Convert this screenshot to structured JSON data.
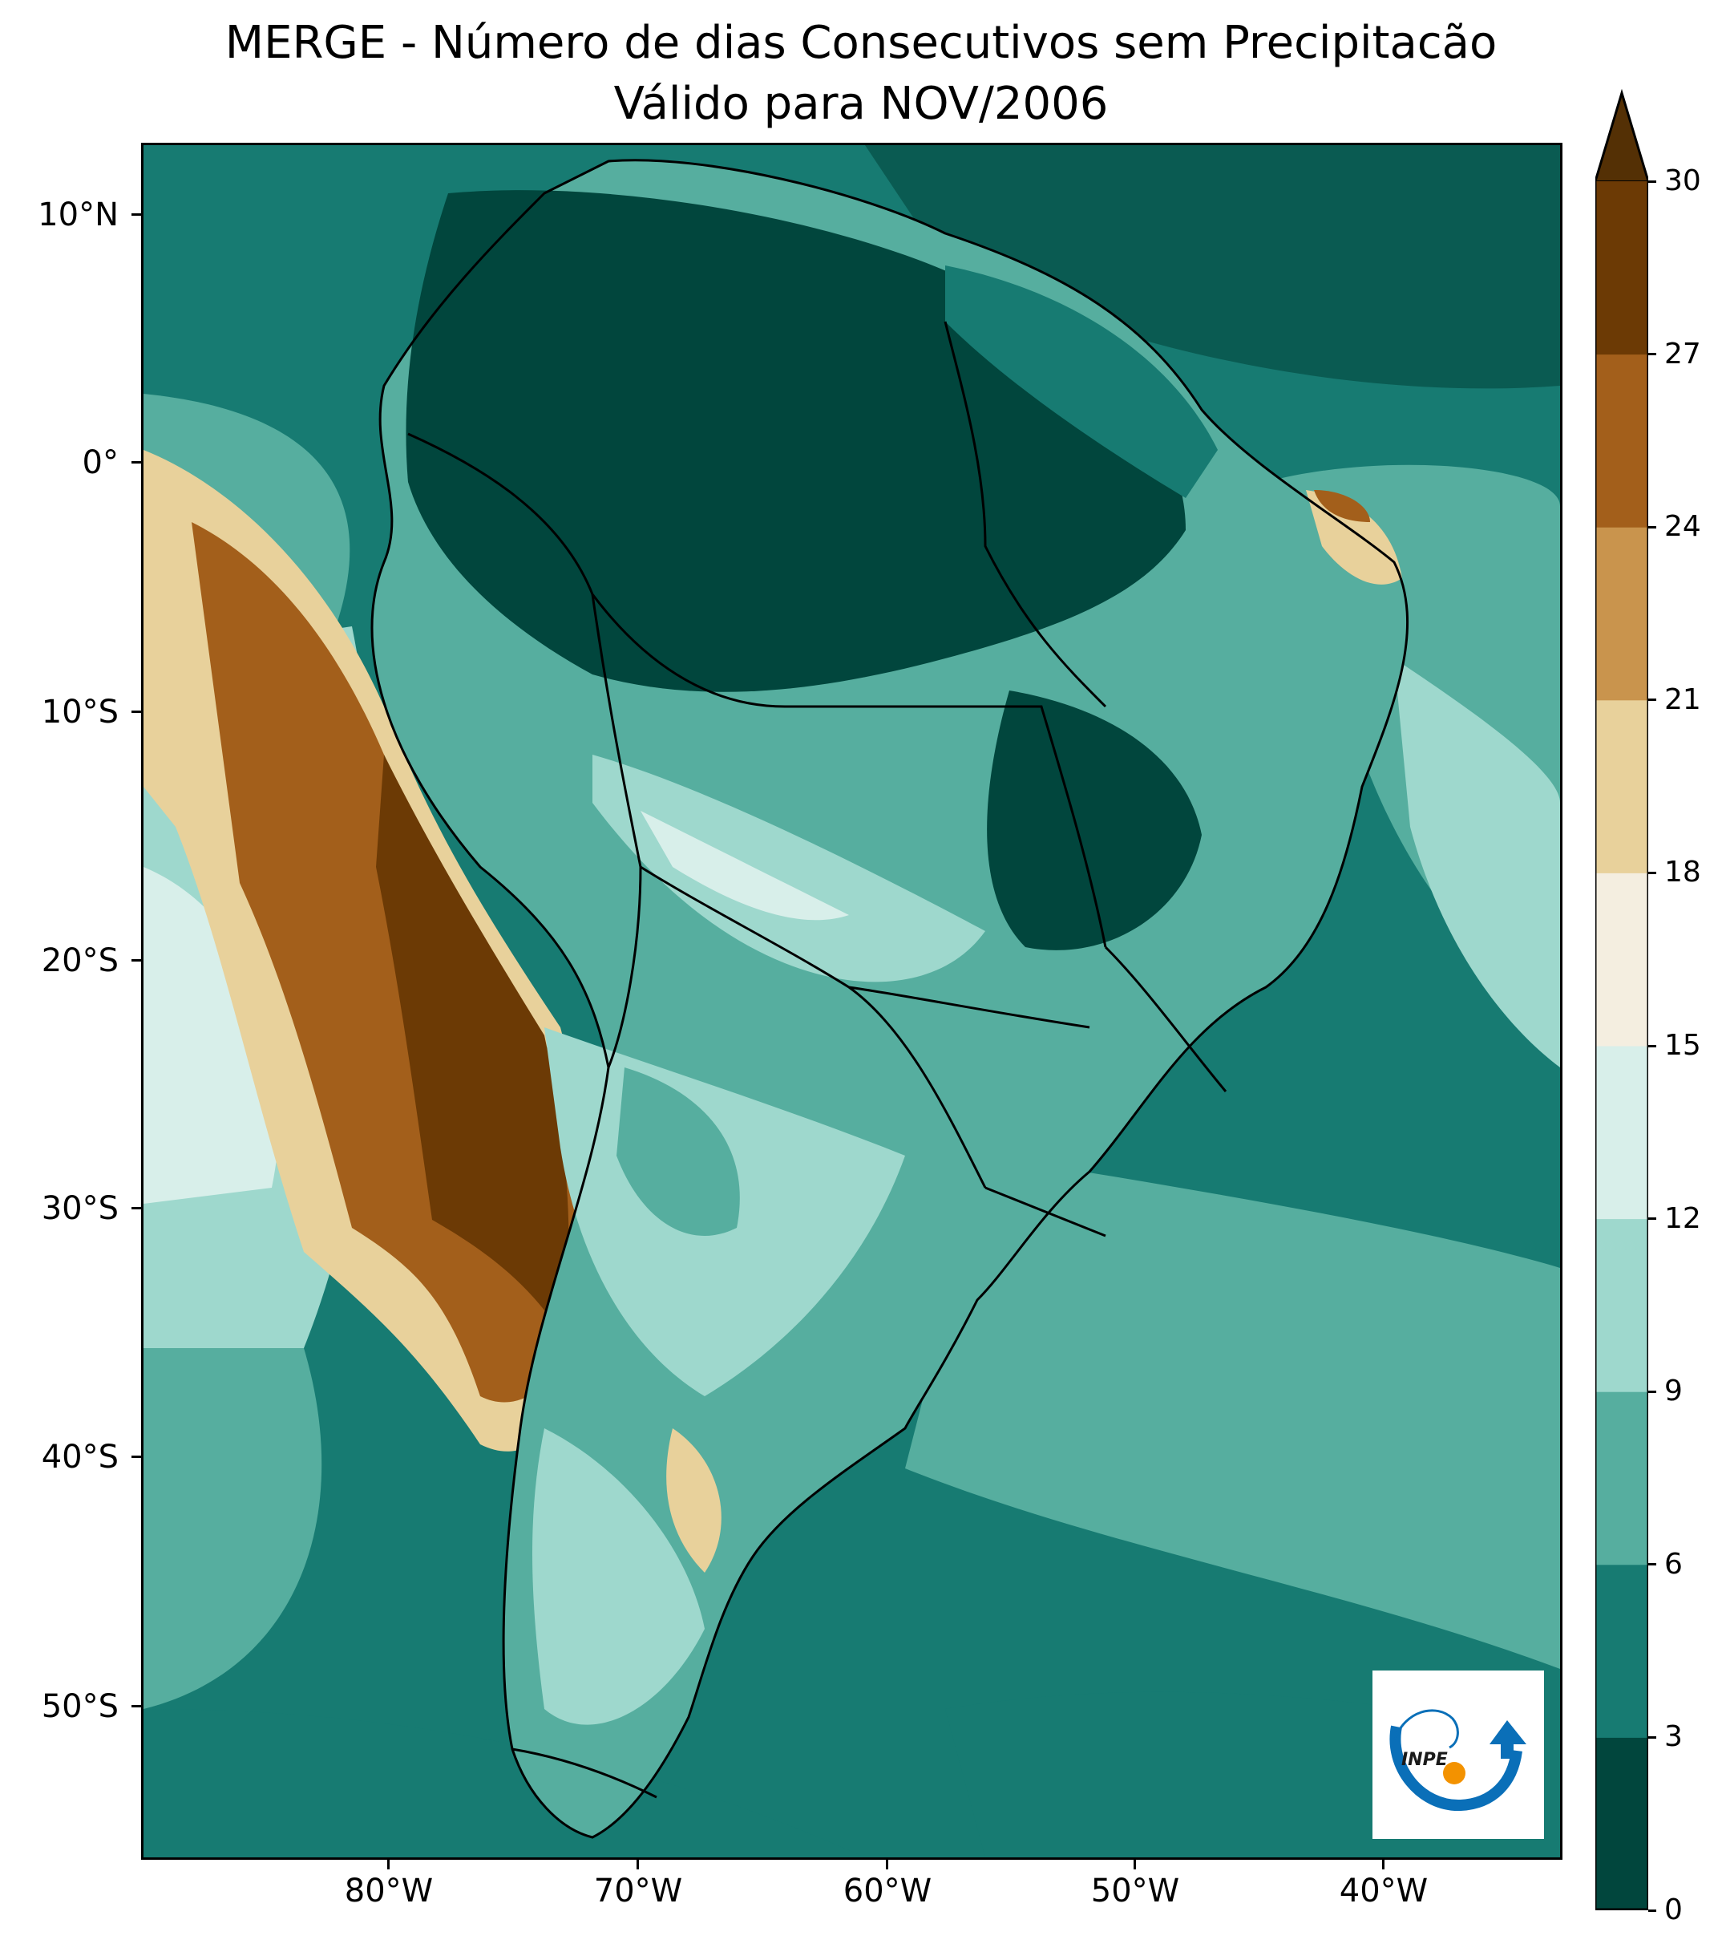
{
  "title": {
    "line1": "MERGE - Número de dias Consecutivos sem Precipitacão",
    "line2": "Válido para NOV/2006"
  },
  "map": {
    "region": "South America",
    "lat_range": [
      -56,
      13
    ],
    "lon_range": [
      -90,
      -33
    ],
    "lat_ticks": [
      "10°N",
      "0°",
      "10°S",
      "20°S",
      "30°S",
      "40°S",
      "50°S"
    ],
    "lon_ticks": [
      "80°W",
      "70°W",
      "60°W",
      "50°W",
      "40°W"
    ]
  },
  "colorbar": {
    "ticks": [
      "0",
      "3",
      "6",
      "9",
      "12",
      "15",
      "18",
      "21",
      "24",
      "27",
      "30"
    ],
    "colors": [
      "#01463d",
      "#177b72",
      "#56ae9f",
      "#9ed8cd",
      "#d8efea",
      "#f4eee0",
      "#e8d19b",
      "#c9944d",
      "#a35f1b",
      "#6c3a05"
    ],
    "extend_color": "#543005",
    "extend": "max"
  },
  "logo": {
    "text": "INPE"
  }
}
